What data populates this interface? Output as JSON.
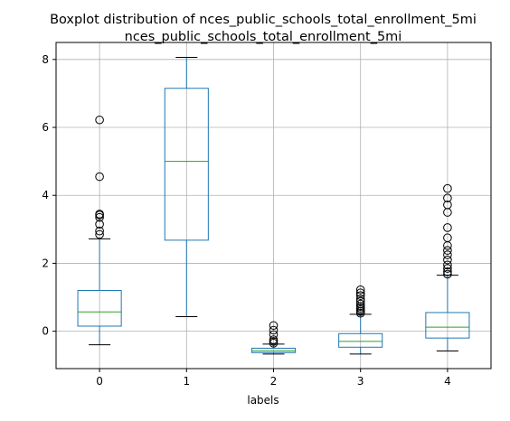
{
  "chart_data": {
    "type": "boxplot",
    "title": "Boxplot distribution of nces_public_schools_total_enrollment_5mi",
    "subtitle": "nces_public_schools_total_enrollment_5mi",
    "xlabel": "labels",
    "ylabel": "",
    "ylim": [
      -1.1,
      8.5
    ],
    "yticks": [
      0,
      2,
      4,
      6,
      8
    ],
    "grid": true,
    "box_color": "#1f77b4",
    "median_color": "#2ca02c",
    "whisker_color": "#000000",
    "categories": [
      "0",
      "1",
      "2",
      "3",
      "4"
    ],
    "boxes": [
      {
        "label": "0",
        "whisker_low": -0.4,
        "q1": 0.15,
        "median": 0.57,
        "q3": 1.2,
        "whisker_high": 2.72,
        "outliers": [
          2.85,
          2.95,
          3.15,
          3.35,
          3.42,
          3.45,
          4.55,
          6.22
        ]
      },
      {
        "label": "1",
        "whisker_low": 0.43,
        "q1": 2.68,
        "median": 5.0,
        "q3": 7.15,
        "whisker_high": 8.06,
        "outliers": []
      },
      {
        "label": "2",
        "whisker_low": -0.67,
        "q1": -0.63,
        "median": -0.58,
        "q3": -0.5,
        "whisker_high": -0.38,
        "outliers": [
          -0.35,
          -0.3,
          -0.25,
          -0.1,
          0.03,
          0.17
        ]
      },
      {
        "label": "3",
        "whisker_low": -0.67,
        "q1": -0.47,
        "median": -0.3,
        "q3": -0.07,
        "whisker_high": 0.5,
        "outliers": [
          0.53,
          0.58,
          0.63,
          0.68,
          0.73,
          0.8,
          0.88,
          0.95,
          1.05,
          1.13,
          1.22
        ]
      },
      {
        "label": "4",
        "whisker_low": -0.58,
        "q1": -0.2,
        "median": 0.12,
        "q3": 0.55,
        "whisker_high": 1.65,
        "outliers": [
          1.68,
          1.75,
          1.85,
          1.95,
          2.1,
          2.25,
          2.38,
          2.52,
          2.75,
          3.05,
          3.5,
          3.72,
          3.92,
          4.2
        ]
      }
    ]
  }
}
